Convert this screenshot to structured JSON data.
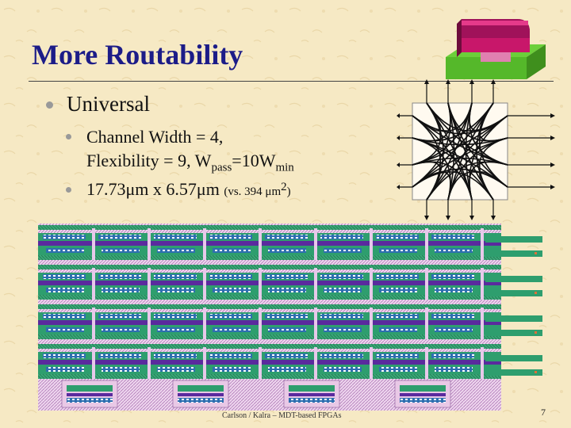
{
  "slide": {
    "title": "More Routability",
    "bullet1": "Universal",
    "sub1": {
      "line1": "Channel Width = 4,",
      "line2_prefix": "Flexibility = 9, W",
      "line2_sub1": "pass",
      "line2_mid": "=10W",
      "line2_sub2": "min"
    },
    "sub2": {
      "text": "17.73μm x 6.57μm",
      "note_prefix": "(vs. 394 μm",
      "note_sup": "2",
      "note_suffix": ")"
    },
    "footer": "Carlson / Kalra – MDT-based FPGAs",
    "page_number": "7"
  },
  "icons": {
    "logo": "transistor-3d-icon",
    "switchbox": "switch-box-diagram",
    "layout": "chip-layout-image"
  },
  "colors": {
    "background": "#f6e9c4",
    "title": "#1c1c88",
    "bullet": "#999999",
    "layout_green": "#2e9e6e",
    "layout_purple": "#5a2a9e",
    "layout_pink": "#d8b6dc"
  }
}
